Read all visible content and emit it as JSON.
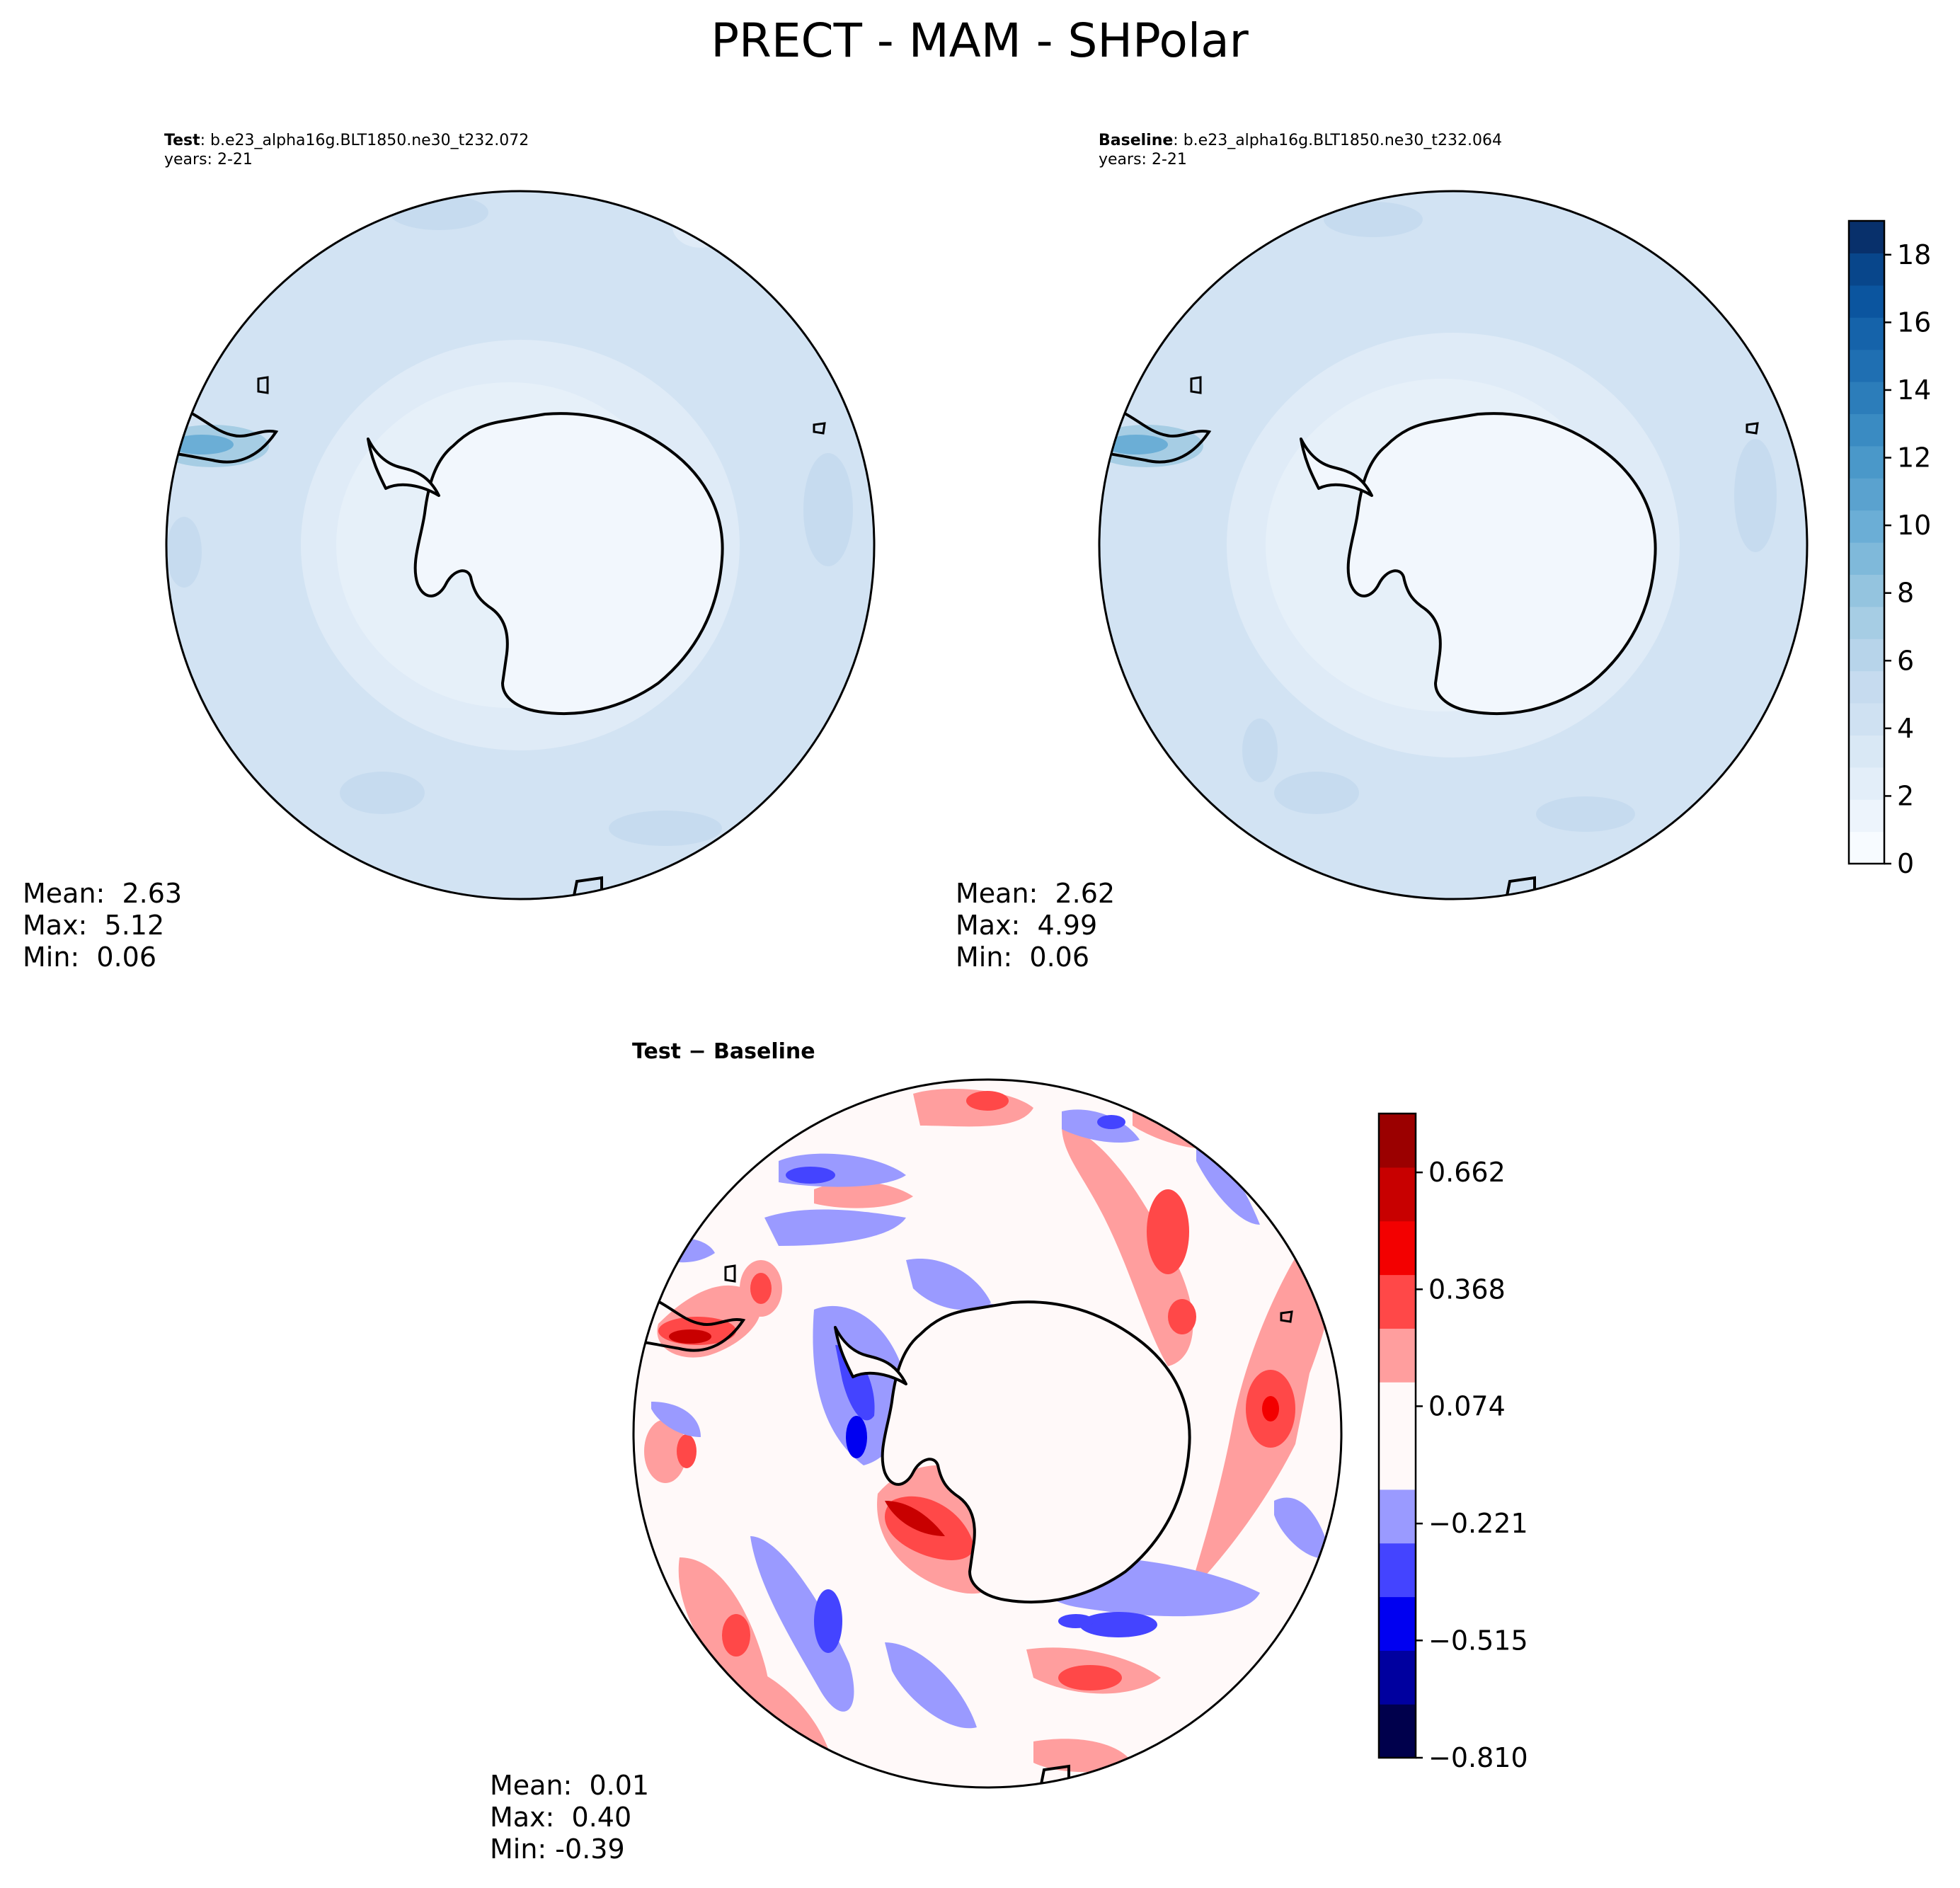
{
  "figure": {
    "title": "PRECT - MAM - SHPolar"
  },
  "colors": {
    "ocean_light": "#d2e3f3",
    "ocean_mid": "#c6dbef",
    "ice_lighter": "#e6f0f9",
    "land_white": "#f2f7fd",
    "coast": "#000000",
    "outline": "#000000"
  },
  "chart_data": [
    {
      "type": "heatmap",
      "panel": "test",
      "projection": "south-polar-stereographic",
      "label_bold": "Test",
      "label_text": ": b.e23_alpha16g.BLT1850.ne30_t232.072",
      "years": "years: 2-21",
      "stats": {
        "mean_label": "Mean:  2.63",
        "max_label": "Max:  5.12",
        "min_label": "Min:  0.06",
        "mean": 2.63,
        "max": 5.12,
        "min": 0.06
      }
    },
    {
      "type": "heatmap",
      "panel": "baseline",
      "projection": "south-polar-stereographic",
      "label_bold": "Baseline",
      "label_text": ": b.e23_alpha16g.BLT1850.ne30_t232.064",
      "years": "years: 2-21",
      "stats": {
        "mean_label": "Mean:  2.62",
        "max_label": "Max:  4.99",
        "min_label": "Min:  0.06",
        "mean": 2.62,
        "max": 4.99,
        "min": 0.06
      },
      "colorbar": {
        "range": [
          0,
          19
        ],
        "ticks": [
          "0",
          "2",
          "4",
          "6",
          "8",
          "10",
          "12",
          "14",
          "16",
          "18"
        ],
        "tick_values": [
          0,
          2,
          4,
          6,
          8,
          10,
          12,
          14,
          16,
          18
        ],
        "colors": [
          "#f7fbff",
          "#edf4fc",
          "#e3eef9",
          "#d9e8f5",
          "#cfe1f2",
          "#c6dbef",
          "#b7d4ea",
          "#a6cde4",
          "#94c4df",
          "#7fb9da",
          "#6baed6",
          "#5aa2cf",
          "#4a98c9",
          "#3a8bc2",
          "#2c7dba",
          "#1f6fb2",
          "#1563aa",
          "#0b559f",
          "#08468b",
          "#08306b"
        ]
      }
    },
    {
      "type": "heatmap",
      "panel": "difference",
      "projection": "south-polar-stereographic",
      "label_bold": "Test − Baseline",
      "stats": {
        "mean_label": "Mean:  0.01",
        "max_label": "Max:  0.40",
        "min_label": "Min: -0.39",
        "mean": 0.01,
        "max": 0.4,
        "min": -0.39
      },
      "colorbar": {
        "range": [
          -0.81,
          0.81
        ],
        "ticks": [
          "−0.810",
          "−0.515",
          "−0.221",
          "0.074",
          "0.368",
          "0.662"
        ],
        "tick_values": [
          -0.81,
          -0.515,
          -0.221,
          0.074,
          0.368,
          0.662
        ],
        "colors": [
          "#00004c",
          "#00009f",
          "#0000f1",
          "#4444ff",
          "#9a9aff",
          "#fff9f9",
          "#fff9f9",
          "#ff9e9e",
          "#ff4848",
          "#f30000",
          "#c80000",
          "#9b0000"
        ]
      }
    }
  ]
}
